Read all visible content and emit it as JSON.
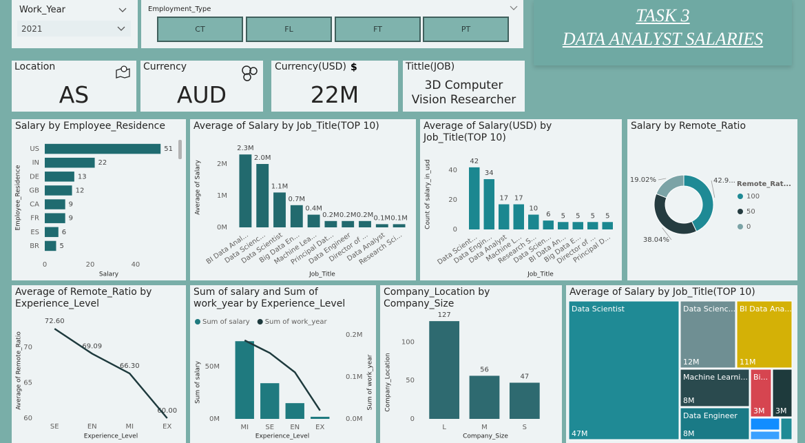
{
  "header": {
    "title": "TASK 3",
    "subtitle": "DATA ANALYST SALARIES"
  },
  "slicers": [
    {
      "label": "Work_Year",
      "value": "2021"
    },
    {
      "label": "Employment_Type",
      "options": [
        "CT",
        "FL",
        "FT",
        "PT"
      ]
    }
  ],
  "cards": [
    {
      "label": "Location",
      "value": "AS"
    },
    {
      "label": "Currency",
      "value": "AUD"
    },
    {
      "label": "Currency(USD)",
      "icon": "$",
      "value": "22M"
    },
    {
      "label": "Tittle(JOB)",
      "value": "3D Computer Vision Researcher"
    }
  ],
  "chart_data": [
    {
      "type": "bar",
      "orientation": "horizontal",
      "title": "Salary by Employee_Residence",
      "categories": [
        "US",
        "IN",
        "DE",
        "GB",
        "CA",
        "FR",
        "ES",
        "BR"
      ],
      "values": [
        51,
        22,
        13,
        12,
        9,
        9,
        6,
        5
      ],
      "color": "#1f6b70",
      "xlim": [
        0,
        57
      ],
      "xticks": [
        0,
        20,
        40
      ],
      "x_label": "Salary",
      "y_label": "Employee_Residence"
    },
    {
      "type": "bar",
      "title": "Average of Salary by Job_Title(TOP 10)",
      "categories": [
        "BI Data Anal...",
        "Data Scienc...",
        "Data Scientist",
        "Big Data En...",
        "Machine Lea...",
        "Principal Dat...",
        "Data Engineer",
        "Director of ...",
        "Data Analyst",
        "Research Sci..."
      ],
      "values": [
        2300000,
        2000000,
        1100000,
        700000,
        400000,
        200000,
        200000,
        200000,
        100000,
        100000
      ],
      "value_labels": [
        "2.3M",
        "2.0M",
        "1.1M",
        "0.7M",
        "0.4M",
        "0.2M",
        "0.2M",
        "0.2M",
        "0.1M",
        "0.1M"
      ],
      "color": "#226a6e",
      "ylim": [
        0,
        2500000
      ],
      "yticks": [
        {
          "value": 0,
          "label": "0M"
        },
        {
          "value": 1000000,
          "label": "1M"
        },
        {
          "value": 2000000,
          "label": "2M"
        }
      ],
      "x_label": "Job_Title",
      "y_label": "Average of Salary"
    },
    {
      "type": "bar",
      "title": "Average of Salary(USD) by Job_Title(TOP 10)",
      "categories": [
        "Data Scient...",
        "Data Engin...",
        "Data Analyst",
        "Machine L...",
        "Research S...",
        "Data Scien...",
        "BI Data An...",
        "Big Data E...",
        "Director of ...",
        "Principal D..."
      ],
      "values": [
        42,
        34,
        17,
        17,
        10,
        6,
        5,
        5,
        5,
        5
      ],
      "color": "#1b8790",
      "ylim": [
        0,
        48
      ],
      "yticks": [
        0,
        20,
        40
      ],
      "x_label": "Job_Title",
      "y_label": "Count of salary_in_usd"
    },
    {
      "type": "pie",
      "donut": true,
      "title": "Salary by Remote_Ratio",
      "legend_title": "Remote_Rat...",
      "legend": "right",
      "categories": [
        "100",
        "50",
        "0"
      ],
      "values": [
        42.94,
        38.04,
        19.02
      ],
      "value_labels": [
        "42.9...",
        "38.04%",
        "19.02%"
      ],
      "colors": [
        "#1f8a95",
        "#253c40",
        "#7ba3a6"
      ]
    },
    {
      "type": "line",
      "title": "Average of Remote_Ratio by Experience_Level",
      "categories": [
        "SE",
        "EN",
        "MI",
        "EX"
      ],
      "values": [
        72.6,
        69.09,
        66.3,
        60
      ],
      "value_labels": [
        "72.60",
        "69.09",
        "66.30",
        "60.00"
      ],
      "color": "#1e3a3d",
      "ylim": [
        60,
        73
      ],
      "yticks": [
        60,
        65,
        70
      ],
      "x_label": "Experience_Level",
      "y_label": "Average of Remote_Ratio"
    },
    {
      "type": "combo",
      "title": "Sum of salary and Sum of work_year by Experience_Level",
      "categories": [
        "MI",
        "SE",
        "EN",
        "EX"
      ],
      "series": [
        {
          "name": "Sum of salary",
          "type": "bar",
          "color": "#1f7a7f",
          "values": [
            74000000,
            34000000,
            15000000,
            2000000
          ]
        },
        {
          "name": "Sum of work_year",
          "type": "line",
          "axis": "y2",
          "color": "#1e3a3d",
          "values": [
            187000,
            157000,
            111000,
            20000
          ]
        }
      ],
      "ylim": [
        0,
        84000000
      ],
      "yticks": [
        {
          "value": 0,
          "label": "0M"
        },
        {
          "value": 50000000,
          "label": "50M"
        }
      ],
      "y2lim": [
        0,
        210000
      ],
      "y2ticks": [
        {
          "value": 0,
          "label": "0.0M"
        },
        {
          "value": 100000,
          "label": "0.1M"
        },
        {
          "value": 200000,
          "label": "0.2M"
        }
      ],
      "x_label": "Experience_Level",
      "y_label": "Sum of salary",
      "y2_label": "Sum of work_year"
    },
    {
      "type": "bar",
      "title": "Company_Location by Company_Size",
      "categories": [
        "L",
        "M",
        "S"
      ],
      "values": [
        127,
        56,
        47
      ],
      "color": "#2e6a70",
      "ylim": [
        0,
        145
      ],
      "yticks": [
        0,
        50,
        100
      ],
      "x_label": "Company_Size",
      "y_label": "Company_Location"
    },
    {
      "type": "treemap",
      "title": "Average of Salary by Job_Title(TOP 10)",
      "categories": [
        "Data Scientist",
        "Data Scienc...",
        "BI Data Ana...",
        "Machine Learni...",
        "Data Engineer",
        "Bi...",
        null,
        null,
        null,
        null
      ],
      "values": [
        47000000,
        12000000,
        11000000,
        8000000,
        8000000,
        3000000,
        3000000,
        1000000,
        1000000,
        2000000
      ],
      "value_labels": [
        "47M",
        "12M",
        "11M",
        "8M",
        "8M",
        "3M",
        "3M",
        null,
        null,
        null
      ],
      "colors": [
        "#1f8a95",
        "#6f8f93",
        "#d4b106",
        "#2a4a4e",
        "#1a7a86",
        "#d64550",
        "#1e3a3c",
        "#118dff",
        "#3aa0ff",
        "#1f8a95"
      ]
    }
  ]
}
